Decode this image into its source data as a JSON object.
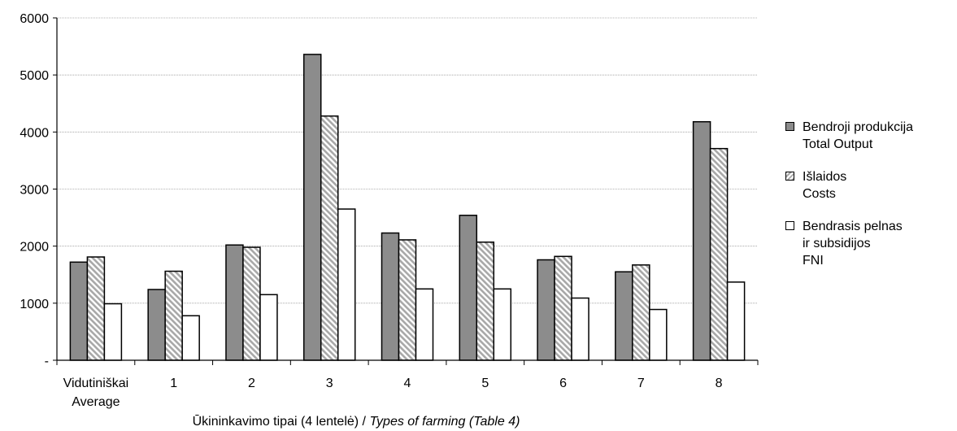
{
  "chart_data": {
    "type": "bar",
    "categories": [
      {
        "line1": "Vidutiniškai",
        "line2": "Average"
      },
      {
        "line1": "1",
        "line2": ""
      },
      {
        "line1": "2",
        "line2": ""
      },
      {
        "line1": "3",
        "line2": ""
      },
      {
        "line1": "4",
        "line2": ""
      },
      {
        "line1": "5",
        "line2": ""
      },
      {
        "line1": "6",
        "line2": ""
      },
      {
        "line1": "7",
        "line2": ""
      },
      {
        "line1": "8",
        "line2": ""
      }
    ],
    "series": [
      {
        "name_lines": [
          "Bendroji produkcija",
          "Total Output"
        ],
        "fill": "#8c8c8c",
        "pattern": "solid",
        "values": [
          1720,
          1240,
          2020,
          5360,
          2230,
          2540,
          1760,
          1550,
          4180
        ]
      },
      {
        "name_lines": [
          "Išlaidos",
          "Costs"
        ],
        "fill": "#d8d8d8",
        "pattern": "hatch",
        "values": [
          1810,
          1560,
          1980,
          4280,
          2110,
          2070,
          1820,
          1670,
          3710
        ]
      },
      {
        "name_lines": [
          "Bendrasis pelnas",
          "ir subsidijos",
          "FNI"
        ],
        "fill": "#ffffff",
        "pattern": "solid",
        "values": [
          990,
          780,
          1150,
          2650,
          1250,
          1250,
          1090,
          890,
          1370
        ]
      }
    ],
    "ylim": [
      0,
      6000
    ],
    "yticks": [
      {
        "value": 0,
        "label": "-"
      },
      {
        "value": 1000,
        "label": "1000"
      },
      {
        "value": 2000,
        "label": "2000"
      },
      {
        "value": 3000,
        "label": "3000"
      },
      {
        "value": 4000,
        "label": "4000"
      },
      {
        "value": 5000,
        "label": "5000"
      },
      {
        "value": 6000,
        "label": "6000"
      }
    ],
    "xlabel_plain": "Ūkininkavimo tipai (4 lentelė) / ",
    "xlabel_italic": "Types of farming (Table 4)",
    "ylabel": "",
    "grid": true,
    "legend_position": "right"
  }
}
